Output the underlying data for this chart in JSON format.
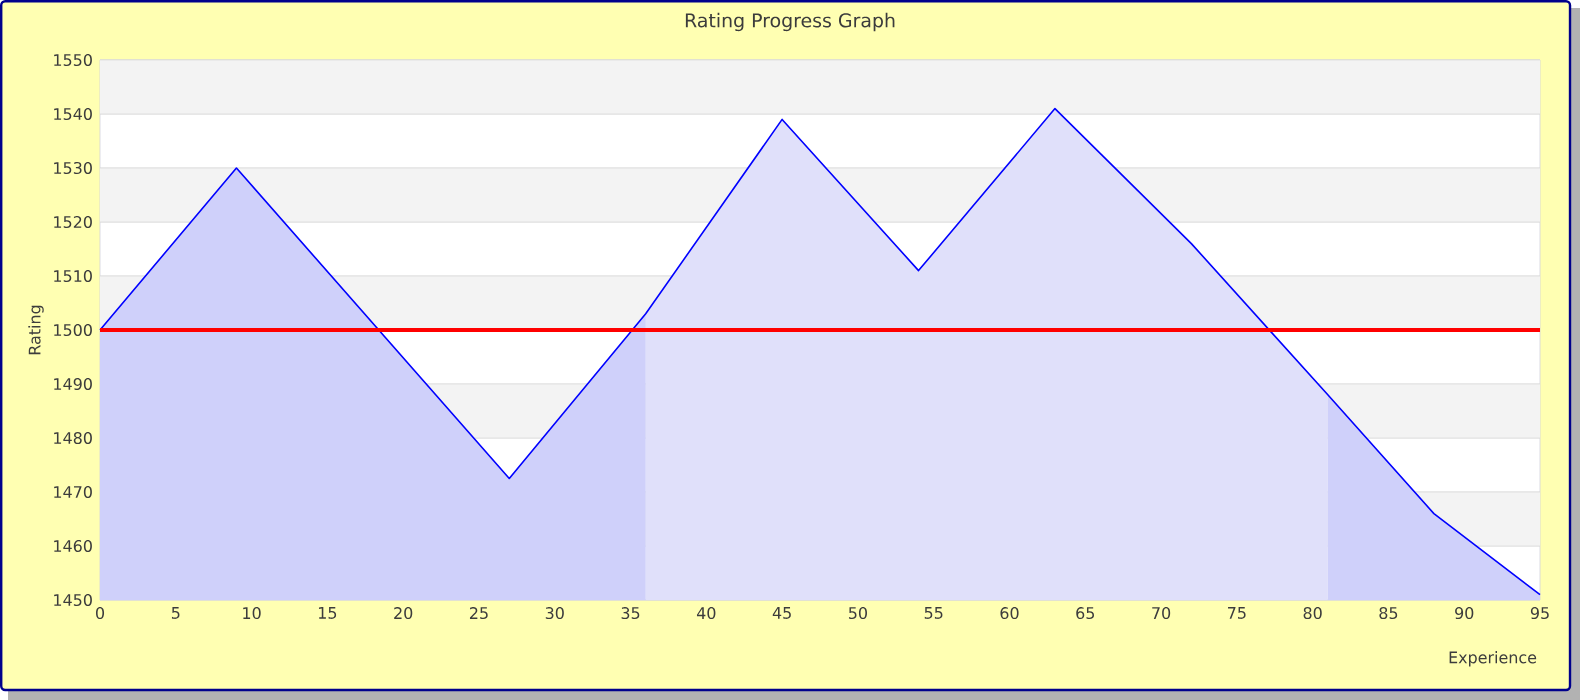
{
  "chart_data": {
    "type": "area",
    "title": "Rating Progress Graph",
    "xlabel": "Experience",
    "ylabel": "Rating",
    "x": [
      0,
      9,
      27,
      36,
      45,
      54,
      63,
      72,
      81,
      88,
      95
    ],
    "series": [
      {
        "color": "#0000ff",
        "values": [
          1500,
          1530,
          1472.5,
          1503,
          1539,
          1511,
          1541,
          1516,
          1488,
          1466,
          1451
        ]
      }
    ],
    "xlim": [
      0,
      95
    ],
    "ylim": [
      1450,
      1550
    ],
    "xticks": [
      0,
      5,
      10,
      15,
      20,
      25,
      30,
      35,
      40,
      45,
      50,
      55,
      60,
      65,
      70,
      75,
      80,
      85,
      90,
      95
    ],
    "yticks": [
      1450,
      1460,
      1470,
      1480,
      1490,
      1500,
      1510,
      1520,
      1530,
      1540,
      1550
    ],
    "grid": "y",
    "ref_lines": [
      {
        "axis": "y",
        "value": 1500,
        "color": "#ff0000"
      }
    ],
    "bands": [
      {
        "axis": "x",
        "from": 36,
        "to": 81,
        "color": "#e0e0fa"
      }
    ]
  }
}
